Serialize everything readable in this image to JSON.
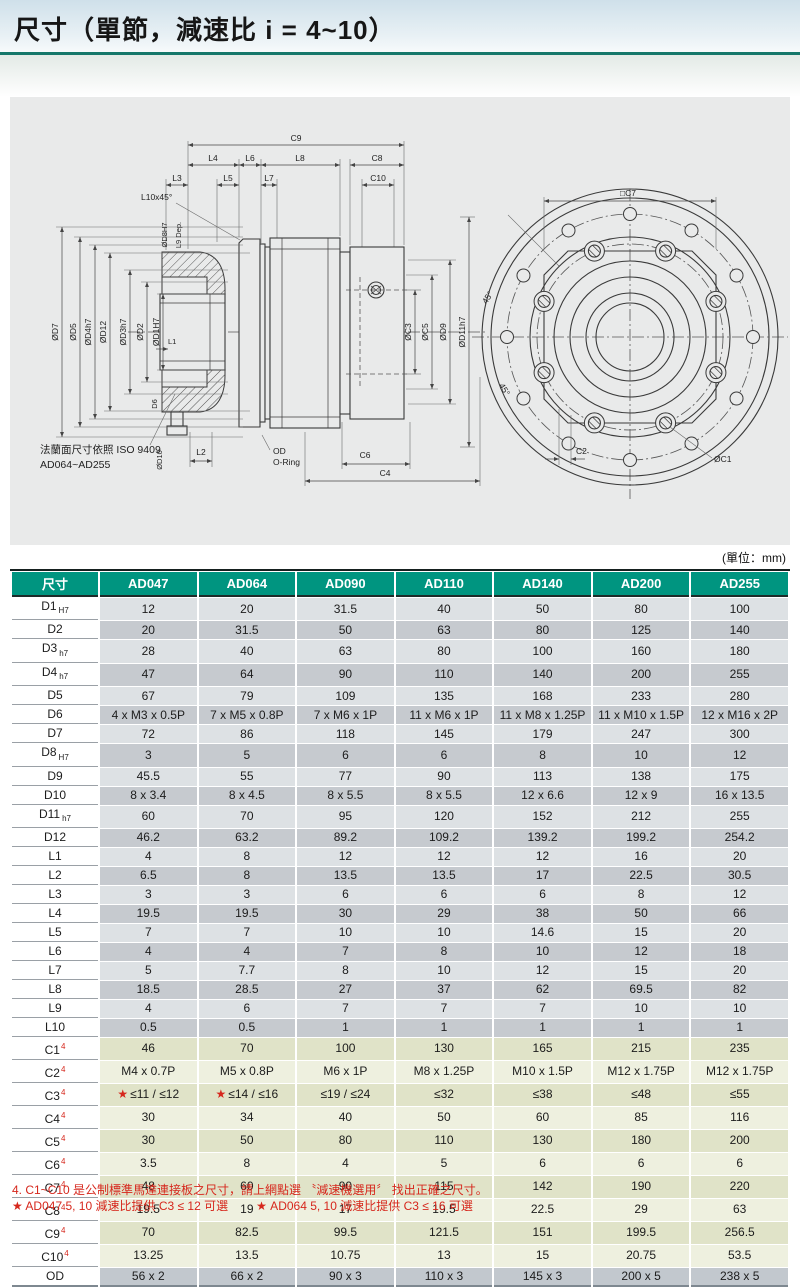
{
  "page": {
    "title": "尺寸（單節，減速比 i = 4~10）",
    "unit_note": "(單位：mm)"
  },
  "colors": {
    "header-green": "#009580",
    "rule-teal": "#15776a",
    "row-light": "#dde1e4",
    "row-dark": "#c6cacf",
    "c-light": "#eef0df",
    "c-dark": "#e0e3c8",
    "od-row": "#c2c8ce",
    "accent-red": "#d6271c"
  },
  "drawing": {
    "note1": "法蘭面尺寸依照 ISO 9409",
    "note2": "AD064~AD255",
    "labels": {
      "c9": "C9",
      "l4": "L4",
      "l6": "L6",
      "l8": "L8",
      "c8": "C8",
      "l3": "L3",
      "l5": "L5",
      "l7": "L7",
      "c10": "C10",
      "l10": "L10x45°",
      "dd7": "ØD7",
      "dd5": "ØD5",
      "dd4": "ØD4h7",
      "dd12": "ØD12",
      "dd3": "ØD3h7",
      "dd2": "ØD2",
      "dd1": "ØD1H7",
      "dd8": "ØD8H7",
      "l9": "L9 Dep.",
      "l1": "L1",
      "d6": "D6",
      "dd10": "ØD10",
      "l2": "L2",
      "od": "OD",
      "oring": "O-Ring",
      "c6": "C6",
      "c4": "C4",
      "dc3": "ØC3",
      "dc5": "ØC5",
      "dd9": "ØD9",
      "dd11": "ØD11h7",
      "c7": "□C7",
      "a45a": "45°",
      "a45b": "45°",
      "c2": "C2",
      "dc1": "ØC1"
    }
  },
  "table": {
    "columns": [
      "尺寸",
      "AD047",
      "AD064",
      "AD090",
      "AD110",
      "AD140",
      "AD200",
      "AD255"
    ],
    "rows": [
      {
        "label": "D1",
        "sub": "H7",
        "sec": "dl",
        "values": [
          "12",
          "20",
          "31.5",
          "40",
          "50",
          "80",
          "100"
        ]
      },
      {
        "label": "D2",
        "sec": "dl",
        "values": [
          "20",
          "31.5",
          "50",
          "63",
          "80",
          "125",
          "140"
        ]
      },
      {
        "label": "D3",
        "sub": "h7",
        "sec": "dl",
        "values": [
          "28",
          "40",
          "63",
          "80",
          "100",
          "160",
          "180"
        ]
      },
      {
        "label": "D4",
        "sub": "h7",
        "sec": "dl",
        "values": [
          "47",
          "64",
          "90",
          "110",
          "140",
          "200",
          "255"
        ]
      },
      {
        "label": "D5",
        "sec": "dl",
        "values": [
          "67",
          "79",
          "109",
          "135",
          "168",
          "233",
          "280"
        ]
      },
      {
        "label": "D6",
        "sec": "dl",
        "values": [
          "4 x M3 x 0.5P",
          "7 x M5 x 0.8P",
          "7 x M6 x 1P",
          "11 x M6 x 1P",
          "11 x M8 x 1.25P",
          "11 x M10 x 1.5P",
          "12 x M16 x 2P"
        ]
      },
      {
        "label": "D7",
        "sec": "dl",
        "values": [
          "72",
          "86",
          "118",
          "145",
          "179",
          "247",
          "300"
        ]
      },
      {
        "label": "D8",
        "sub": "H7",
        "sec": "dl",
        "values": [
          "3",
          "5",
          "6",
          "6",
          "8",
          "10",
          "12"
        ]
      },
      {
        "label": "D9",
        "sec": "dl",
        "values": [
          "45.5",
          "55",
          "77",
          "90",
          "113",
          "138",
          "175"
        ]
      },
      {
        "label": "D10",
        "sec": "dl",
        "values": [
          "8 x 3.4",
          "8 x 4.5",
          "8 x 5.5",
          "8 x 5.5",
          "12 x 6.6",
          "12 x 9",
          "16 x 13.5"
        ]
      },
      {
        "label": "D11",
        "sub": "h7",
        "sec": "dl",
        "values": [
          "60",
          "70",
          "95",
          "120",
          "152",
          "212",
          "255"
        ]
      },
      {
        "label": "D12",
        "sec": "dl",
        "values": [
          "46.2",
          "63.2",
          "89.2",
          "109.2",
          "139.2",
          "199.2",
          "254.2"
        ]
      },
      {
        "label": "L1",
        "sec": "dl",
        "values": [
          "4",
          "8",
          "12",
          "12",
          "12",
          "16",
          "20"
        ]
      },
      {
        "label": "L2",
        "sec": "dl",
        "values": [
          "6.5",
          "8",
          "13.5",
          "13.5",
          "17",
          "22.5",
          "30.5"
        ]
      },
      {
        "label": "L3",
        "sec": "dl",
        "values": [
          "3",
          "3",
          "6",
          "6",
          "6",
          "8",
          "12"
        ]
      },
      {
        "label": "L4",
        "sec": "dl",
        "values": [
          "19.5",
          "19.5",
          "30",
          "29",
          "38",
          "50",
          "66"
        ]
      },
      {
        "label": "L5",
        "sec": "dl",
        "values": [
          "7",
          "7",
          "10",
          "10",
          "14.6",
          "15",
          "20"
        ]
      },
      {
        "label": "L6",
        "sec": "dl",
        "values": [
          "4",
          "4",
          "7",
          "8",
          "10",
          "12",
          "18"
        ]
      },
      {
        "label": "L7",
        "sec": "dl",
        "values": [
          "5",
          "7.7",
          "8",
          "10",
          "12",
          "15",
          "20"
        ]
      },
      {
        "label": "L8",
        "sec": "dl",
        "values": [
          "18.5",
          "28.5",
          "27",
          "37",
          "62",
          "69.5",
          "82"
        ]
      },
      {
        "label": "L9",
        "sec": "dl",
        "values": [
          "4",
          "6",
          "7",
          "7",
          "7",
          "10",
          "10"
        ]
      },
      {
        "label": "L10",
        "sec": "dl",
        "values": [
          "0.5",
          "0.5",
          "1",
          "1",
          "1",
          "1",
          "1"
        ]
      },
      {
        "label": "C1",
        "sup": "4",
        "sec": "c",
        "values": [
          "46",
          "70",
          "100",
          "130",
          "165",
          "215",
          "235"
        ]
      },
      {
        "label": "C2",
        "sup": "4",
        "sec": "c",
        "values": [
          "M4 x 0.7P",
          "M5 x 0.8P",
          "M6 x 1P",
          "M8 x 1.25P",
          "M10 x 1.5P",
          "M12 x 1.75P",
          "M12 x 1.75P"
        ]
      },
      {
        "label": "C3",
        "sup": "4",
        "sec": "c",
        "values": [
          "★≤11 / ≤12",
          "★≤14 / ≤16",
          "≤19 / ≤24",
          "≤32",
          "≤38",
          "≤48",
          "≤55"
        ]
      },
      {
        "label": "C4",
        "sup": "4",
        "sec": "c",
        "values": [
          "30",
          "34",
          "40",
          "50",
          "60",
          "85",
          "116"
        ]
      },
      {
        "label": "C5",
        "sup": "4",
        "sec": "c",
        "values": [
          "30",
          "50",
          "80",
          "110",
          "130",
          "180",
          "200"
        ]
      },
      {
        "label": "C6",
        "sup": "4",
        "sec": "c",
        "values": [
          "3.5",
          "8",
          "4",
          "5",
          "6",
          "6",
          "6"
        ]
      },
      {
        "label": "C7",
        "sup": "4",
        "sec": "c",
        "values": [
          "48",
          "60",
          "90",
          "115",
          "142",
          "190",
          "220"
        ]
      },
      {
        "label": "C8",
        "sup": "4",
        "sec": "c",
        "values": [
          "19.5",
          "19",
          "17",
          "19.5",
          "22.5",
          "29",
          "63"
        ]
      },
      {
        "label": "C9",
        "sup": "4",
        "sec": "c",
        "values": [
          "70",
          "82.5",
          "99.5",
          "121.5",
          "151",
          "199.5",
          "256.5"
        ]
      },
      {
        "label": "C10",
        "sup": "4",
        "sec": "c",
        "values": [
          "13.25",
          "13.5",
          "10.75",
          "13",
          "15",
          "20.75",
          "53.5"
        ]
      },
      {
        "label": "OD",
        "sec": "od",
        "values": [
          "56 x 2",
          "66 x 2",
          "90 x 3",
          "110 x 3",
          "145 x 3",
          "200 x 5",
          "238 x 5"
        ]
      }
    ]
  },
  "footnotes": {
    "line1": "4. C1~C10 是公制標準馬達連接板之尺寸，請上網點選 〝減速機選用〞 找出正確之尺寸。",
    "line2a": "★ AD047  5, 10 減速比提供 C3 ≤ 12 可選",
    "line2b": "★ AD064  5, 10 減速比提供 C3 ≤ 16 可選"
  }
}
